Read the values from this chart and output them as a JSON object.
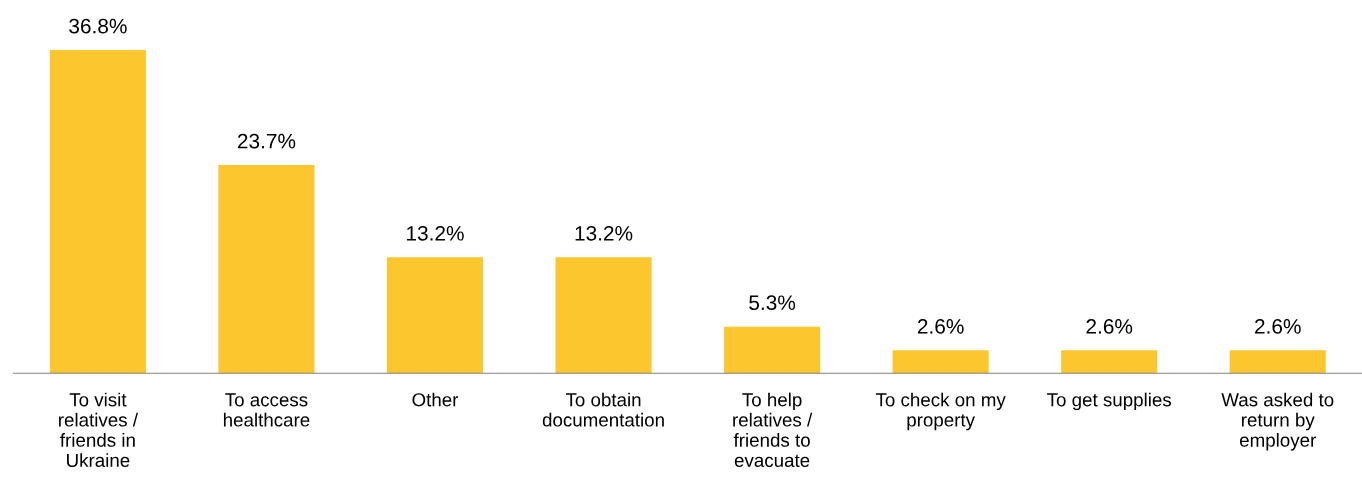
{
  "chart_data": {
    "type": "bar",
    "categories": [
      "To visit\nrelatives /\nfriends in\nUkraine",
      "To access\nhealthcare",
      "Other",
      "To obtain\ndocumentation",
      "To help\nrelatives /\nfriends to\nevacuate",
      "To check on my\nproperty",
      "To get supplies",
      "Was asked to\nreturn by\nemployer"
    ],
    "values": [
      36.8,
      23.7,
      13.2,
      13.2,
      5.3,
      2.6,
      2.6,
      2.6
    ],
    "value_labels": [
      "36.8%",
      "23.7%",
      "13.2%",
      "13.2%",
      "5.3%",
      "2.6%",
      "2.6%",
      "2.6%"
    ],
    "color": "#fcc62e",
    "grid": false,
    "legend": false
  }
}
